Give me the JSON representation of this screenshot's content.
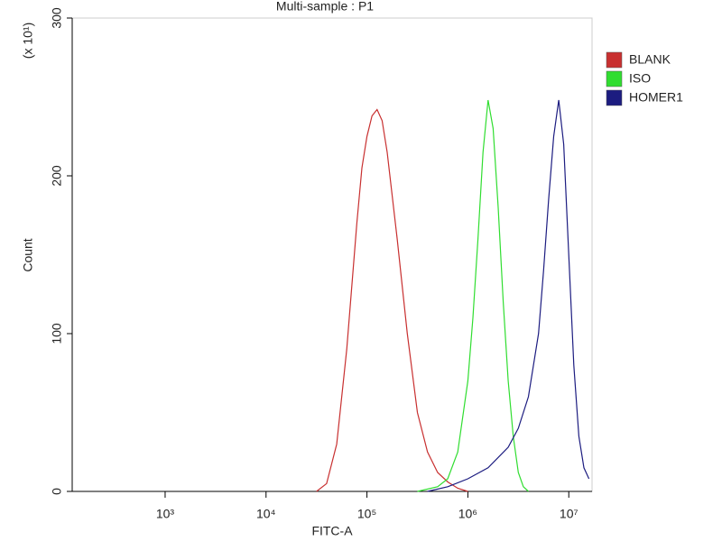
{
  "chart_data": {
    "type": "line",
    "title": "Multi-sample : P1",
    "xlabel": "FITC-A",
    "ylabel": "Count",
    "y_multiplier": "(x 10¹)",
    "xscale": "log",
    "xlim": [
      120,
      17000000
    ],
    "ylim": [
      0,
      300
    ],
    "xticks": [
      {
        "value": 1000,
        "label": "10³"
      },
      {
        "value": 10000,
        "label": "10⁴"
      },
      {
        "value": 100000,
        "label": "10⁵"
      },
      {
        "value": 1000000,
        "label": "10⁶"
      },
      {
        "value": 10000000,
        "label": "10⁷"
      }
    ],
    "yticks": [
      0,
      100,
      200,
      300
    ],
    "legend": "right",
    "series": [
      {
        "name": "BLANK",
        "color": "#c83030",
        "x": [
          31623,
          39811,
          50119,
          63096,
          79433,
          89125,
          100000,
          112202,
          125893,
          141254,
          158489,
          199526,
          251189,
          316228,
          398107,
          501187,
          630957,
          794328,
          1000000
        ],
        "values": [
          0,
          5,
          30,
          90,
          170,
          205,
          225,
          238,
          242,
          235,
          215,
          160,
          100,
          50,
          25,
          12,
          6,
          2,
          0
        ]
      },
      {
        "name": "ISO",
        "color": "#30dd30",
        "x": [
          316228,
          501187,
          630957,
          794328,
          1000000,
          1122018,
          1258925,
          1412538,
          1584893,
          1778279,
          1995262,
          2238721,
          2511886,
          2818383,
          3162278,
          3548134,
          3981072
        ],
        "values": [
          0,
          3,
          8,
          25,
          70,
          110,
          160,
          215,
          248,
          230,
          180,
          120,
          70,
          35,
          12,
          3,
          0
        ]
      },
      {
        "name": "HOMER1",
        "color": "#1c1c80",
        "x": [
          398107,
          630957,
          1000000,
          1584893,
          2511886,
          3162278,
          3981072,
          5011872,
          5623413,
          6309573,
          7079458,
          7943282,
          8912509,
          10000000,
          11220185,
          12589254,
          14125375,
          15848932
        ],
        "values": [
          0,
          3,
          8,
          15,
          28,
          40,
          60,
          100,
          140,
          185,
          225,
          248,
          220,
          150,
          80,
          35,
          15,
          8
        ]
      }
    ]
  }
}
